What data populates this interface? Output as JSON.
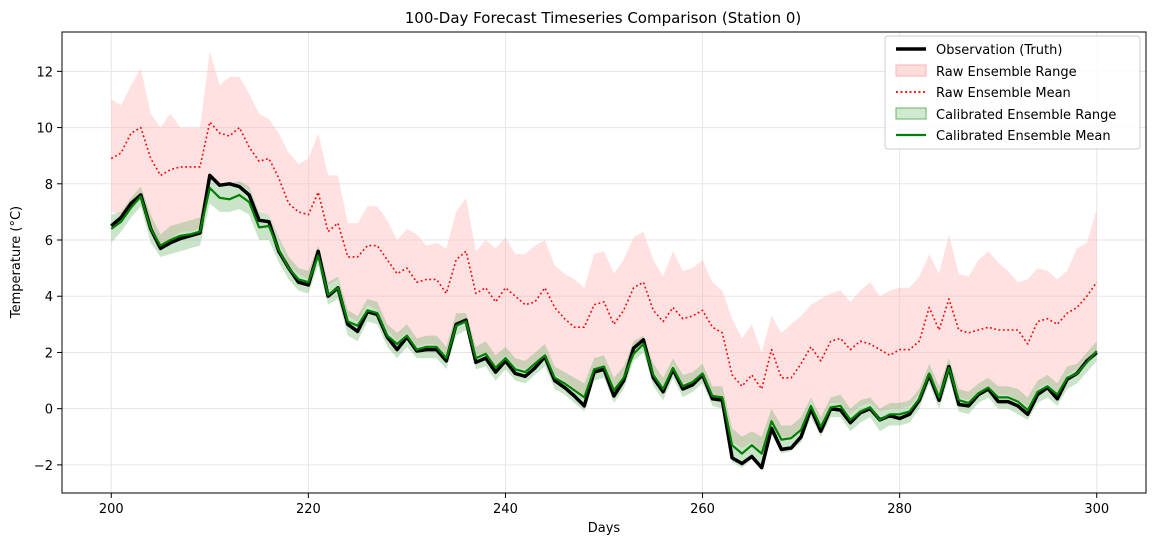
{
  "chart_data": {
    "type": "line",
    "title": "100-Day Forecast Timeseries Comparison (Station 0)",
    "xlabel": "Days",
    "ylabel": "Temperature (°C)",
    "xlim": [
      195,
      305
    ],
    "ylim": [
      -3,
      13.4
    ],
    "xticks": [
      200,
      220,
      240,
      260,
      280,
      300
    ],
    "yticks": [
      -2,
      0,
      2,
      4,
      6,
      8,
      10,
      12
    ],
    "ytick_labels": [
      "−2",
      "0",
      "2",
      "4",
      "6",
      "8",
      "10",
      "12"
    ],
    "grid": true,
    "legend_position": "top-right",
    "x_start": 200,
    "colors": {
      "observation": "#000000",
      "raw": "#ff0000",
      "raw_fill": "#ffb3b3",
      "calibrated": "#008000",
      "calibrated_fill": "#66b366"
    },
    "series": [
      {
        "name": "Observation (Truth)",
        "style": "line",
        "values": [
          6.5,
          6.8,
          7.3,
          7.6,
          6.4,
          5.7,
          5.9,
          6.05,
          6.15,
          6.25,
          8.3,
          7.95,
          8.0,
          7.9,
          7.6,
          6.7,
          6.65,
          5.6,
          5.0,
          4.5,
          4.4,
          5.6,
          4.0,
          4.3,
          3.0,
          2.75,
          3.45,
          3.35,
          2.55,
          2.1,
          2.55,
          2.05,
          2.1,
          2.1,
          1.7,
          3.0,
          3.15,
          1.65,
          1.8,
          1.3,
          1.7,
          1.25,
          1.15,
          1.45,
          1.85,
          1.0,
          0.75,
          0.45,
          0.1,
          1.3,
          1.4,
          0.45,
          1.0,
          2.15,
          2.45,
          1.1,
          0.6,
          1.4,
          0.7,
          0.85,
          1.2,
          0.35,
          0.3,
          -1.75,
          -1.95,
          -1.7,
          -2.1,
          -0.7,
          -1.45,
          -1.4,
          -1.0,
          0.0,
          -0.8,
          0.0,
          -0.05,
          -0.5,
          -0.15,
          0.0,
          -0.4,
          -0.25,
          -0.35,
          -0.2,
          0.3,
          1.2,
          0.3,
          1.5,
          0.15,
          0.1,
          0.5,
          0.7,
          0.25,
          0.25,
          0.1,
          -0.2,
          0.5,
          0.75,
          0.35,
          1.05,
          1.25,
          1.7,
          2.0
        ]
      },
      {
        "name": "Raw Ensemble Range",
        "style": "band",
        "lower": [
          7.0,
          6.9,
          7.2,
          7.7,
          6.5,
          5.8,
          6.0,
          6.3,
          6.3,
          6.4,
          8.2,
          8.0,
          8.0,
          8.0,
          7.8,
          7.0,
          6.9,
          6.0,
          5.1,
          4.8,
          4.6,
          5.5,
          4.4,
          4.6,
          3.3,
          3.1,
          3.7,
          3.5,
          2.8,
          2.4,
          2.7,
          2.2,
          2.3,
          2.3,
          1.9,
          3.0,
          3.2,
          1.9,
          2.0,
          1.5,
          1.9,
          1.5,
          1.4,
          1.6,
          2.0,
          1.2,
          1.0,
          0.7,
          0.4,
          1.3,
          1.5,
          0.7,
          1.2,
          2.1,
          2.4,
          1.3,
          0.8,
          1.6,
          0.9,
          1.0,
          1.3,
          0.5,
          0.4,
          -1.2,
          -1.4,
          -1.2,
          -1.5,
          -0.5,
          -1.0,
          -1.0,
          -0.7,
          0.3,
          -0.5,
          0.2,
          0.2,
          -0.2,
          0.1,
          0.2,
          -0.1,
          0.0,
          0.0,
          0.1,
          0.5,
          1.3,
          0.5,
          1.6,
          0.4,
          0.3,
          0.6,
          0.8,
          0.5,
          0.5,
          0.3,
          0.1,
          0.7,
          0.9,
          0.6,
          1.2,
          1.4,
          1.8,
          2.1
        ],
        "upper": [
          11.0,
          10.8,
          11.5,
          12.1,
          10.5,
          10.0,
          10.5,
          10.0,
          10.0,
          10.0,
          12.7,
          11.5,
          11.8,
          11.8,
          11.2,
          10.5,
          10.3,
          9.8,
          9.1,
          8.7,
          8.9,
          9.8,
          8.3,
          8.3,
          6.6,
          6.6,
          7.2,
          7.2,
          6.7,
          6.0,
          6.4,
          6.2,
          5.8,
          5.9,
          5.7,
          7.0,
          7.5,
          5.6,
          6.0,
          5.7,
          6.1,
          5.5,
          5.5,
          5.8,
          6.0,
          5.1,
          4.8,
          4.6,
          4.3,
          5.5,
          5.6,
          4.8,
          5.3,
          6.1,
          6.3,
          5.3,
          4.7,
          5.6,
          4.9,
          5.0,
          5.3,
          4.5,
          4.2,
          3.2,
          2.5,
          3.0,
          2.0,
          3.3,
          2.7,
          3.0,
          3.3,
          3.7,
          3.9,
          4.1,
          4.2,
          3.8,
          4.2,
          4.5,
          4.0,
          4.2,
          4.3,
          4.3,
          4.7,
          5.5,
          4.8,
          6.2,
          4.8,
          4.7,
          5.3,
          5.6,
          5.2,
          4.9,
          4.5,
          4.6,
          5.0,
          4.9,
          4.6,
          4.9,
          5.7,
          5.9,
          7.1
        ]
      },
      {
        "name": "Raw Ensemble Mean",
        "style": "dotted",
        "values": [
          8.9,
          9.1,
          9.8,
          10.0,
          8.9,
          8.3,
          8.5,
          8.6,
          8.6,
          8.6,
          10.2,
          9.8,
          9.7,
          10.0,
          9.3,
          8.8,
          8.9,
          8.2,
          7.3,
          7.0,
          6.9,
          7.7,
          6.3,
          6.6,
          5.4,
          5.4,
          5.8,
          5.8,
          5.3,
          4.8,
          5.0,
          4.5,
          4.6,
          4.6,
          4.1,
          5.3,
          5.6,
          4.1,
          4.3,
          3.8,
          4.3,
          4.0,
          3.7,
          3.8,
          4.3,
          3.6,
          3.2,
          2.9,
          2.9,
          3.7,
          3.8,
          3.0,
          3.5,
          4.3,
          4.5,
          3.5,
          3.1,
          3.6,
          3.2,
          3.3,
          3.5,
          2.9,
          2.7,
          1.2,
          0.8,
          1.2,
          0.7,
          2.1,
          1.1,
          1.1,
          1.6,
          2.2,
          1.7,
          2.4,
          2.5,
          2.1,
          2.4,
          2.3,
          2.1,
          1.9,
          2.1,
          2.1,
          2.4,
          3.6,
          2.8,
          3.9,
          2.8,
          2.7,
          2.8,
          2.9,
          2.8,
          2.8,
          2.8,
          2.3,
          3.1,
          3.2,
          3.0,
          3.4,
          3.6,
          4.0,
          4.5
        ]
      },
      {
        "name": "Calibrated Ensemble Range",
        "style": "band",
        "lower": [
          5.9,
          6.3,
          6.8,
          7.2,
          5.9,
          5.4,
          5.5,
          5.6,
          5.7,
          5.8,
          7.3,
          7.0,
          7.0,
          7.1,
          6.9,
          6.0,
          6.0,
          5.2,
          4.6,
          4.2,
          4.1,
          5.1,
          3.7,
          3.9,
          2.6,
          2.4,
          3.1,
          3.0,
          2.2,
          1.8,
          2.2,
          1.8,
          1.8,
          1.8,
          1.4,
          2.6,
          2.8,
          1.4,
          1.5,
          1.0,
          1.4,
          1.0,
          0.9,
          1.2,
          1.5,
          0.7,
          0.5,
          0.2,
          -0.1,
          1.0,
          1.1,
          0.2,
          0.7,
          1.7,
          2.0,
          0.8,
          0.3,
          1.1,
          0.4,
          0.6,
          0.9,
          0.1,
          0.0,
          -1.9,
          -2.1,
          -1.8,
          -2.1,
          -0.9,
          -1.6,
          -1.5,
          -1.2,
          -0.3,
          -1.0,
          -0.3,
          -0.3,
          -0.8,
          -0.5,
          -0.3,
          -0.8,
          -0.6,
          -0.6,
          -0.5,
          0.0,
          0.9,
          0.0,
          1.1,
          -0.1,
          -0.2,
          0.2,
          0.4,
          0.0,
          0.0,
          -0.2,
          -0.4,
          0.2,
          0.4,
          0.1,
          0.7,
          0.9,
          1.3,
          1.7
        ],
        "upper": [
          6.9,
          7.0,
          7.5,
          7.9,
          6.9,
          6.2,
          6.5,
          6.6,
          6.7,
          6.8,
          8.3,
          8.0,
          8.0,
          8.1,
          7.9,
          7.0,
          6.9,
          6.1,
          5.4,
          5.0,
          4.9,
          5.8,
          4.5,
          4.7,
          3.5,
          3.3,
          3.9,
          3.8,
          3.0,
          2.7,
          3.0,
          2.5,
          2.6,
          2.6,
          2.2,
          3.4,
          3.4,
          2.2,
          2.4,
          1.9,
          2.2,
          1.8,
          1.7,
          2.0,
          2.3,
          1.5,
          1.3,
          1.1,
          0.9,
          1.8,
          1.9,
          1.1,
          1.5,
          2.4,
          2.6,
          1.6,
          1.1,
          1.8,
          1.2,
          1.3,
          1.6,
          0.8,
          0.8,
          -0.7,
          -1.0,
          -0.8,
          -1.0,
          0.0,
          -0.6,
          -0.6,
          -0.3,
          0.4,
          -0.3,
          0.4,
          0.5,
          0.0,
          0.3,
          0.4,
          0.0,
          0.2,
          0.2,
          0.3,
          0.7,
          1.6,
          0.8,
          1.8,
          0.7,
          0.6,
          0.9,
          1.1,
          0.8,
          0.8,
          0.7,
          0.4,
          1.0,
          1.2,
          0.9,
          1.5,
          1.6,
          2.0,
          2.4
        ]
      },
      {
        "name": "Calibrated Ensemble Mean",
        "style": "line",
        "values": [
          6.4,
          6.65,
          7.15,
          7.55,
          6.4,
          5.8,
          6.0,
          6.15,
          6.2,
          6.3,
          7.85,
          7.5,
          7.45,
          7.6,
          7.35,
          6.45,
          6.5,
          5.65,
          5.0,
          4.6,
          4.5,
          5.45,
          4.05,
          4.3,
          3.1,
          2.95,
          3.5,
          3.4,
          2.6,
          2.3,
          2.6,
          2.1,
          2.2,
          2.2,
          1.8,
          2.95,
          3.1,
          1.8,
          1.95,
          1.45,
          1.8,
          1.4,
          1.3,
          1.6,
          1.9,
          1.1,
          0.9,
          0.65,
          0.4,
          1.4,
          1.5,
          0.65,
          1.1,
          1.95,
          2.3,
          1.2,
          0.7,
          1.45,
          0.8,
          0.95,
          1.25,
          0.45,
          0.4,
          -1.3,
          -1.6,
          -1.3,
          -1.6,
          -0.45,
          -1.1,
          -1.05,
          -0.75,
          0.1,
          -0.65,
          0.05,
          0.1,
          -0.4,
          -0.1,
          0.05,
          -0.4,
          -0.2,
          -0.2,
          -0.1,
          0.35,
          1.25,
          0.4,
          1.45,
          0.3,
          0.2,
          0.55,
          0.75,
          0.4,
          0.4,
          0.25,
          -0.05,
          0.6,
          0.8,
          0.5,
          1.1,
          1.25,
          1.65,
          2.05
        ]
      }
    ]
  }
}
